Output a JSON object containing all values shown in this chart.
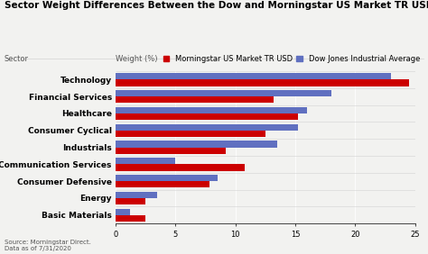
{
  "title": "Sector Weight Differences Between the Dow and Morningstar US Market TR USD",
  "sectors": [
    "Technology",
    "Financial Services",
    "Healthcare",
    "Consumer Cyclical",
    "Industrials",
    "Communication Services",
    "Consumer Defensive",
    "Energy",
    "Basic Materials"
  ],
  "morningstar_values": [
    24.5,
    13.2,
    15.2,
    12.5,
    9.2,
    10.8,
    7.8,
    2.5,
    2.5
  ],
  "dow_values": [
    23.0,
    18.0,
    16.0,
    15.2,
    13.5,
    5.0,
    8.5,
    3.5,
    1.2
  ],
  "morningstar_color": "#cc0000",
  "dow_color": "#6070c0",
  "xlabel": "Weight (%)",
  "sector_label": "Sector",
  "weight_label": "Weight (%)",
  "legend_morningstar": "Morningstar US Market TR USD",
  "legend_dow": "Dow Jones Industrial Average",
  "xlim": [
    0,
    25
  ],
  "xticks": [
    0,
    5,
    10,
    15,
    20,
    25
  ],
  "source_text": "Source: Morningstar Direct.\nData as of 7/31/2020",
  "bg_color": "#f2f2f0",
  "title_fontsize": 7.5,
  "axis_fontsize": 6,
  "legend_fontsize": 6,
  "sector_fontsize": 6.5,
  "bar_height": 0.38
}
